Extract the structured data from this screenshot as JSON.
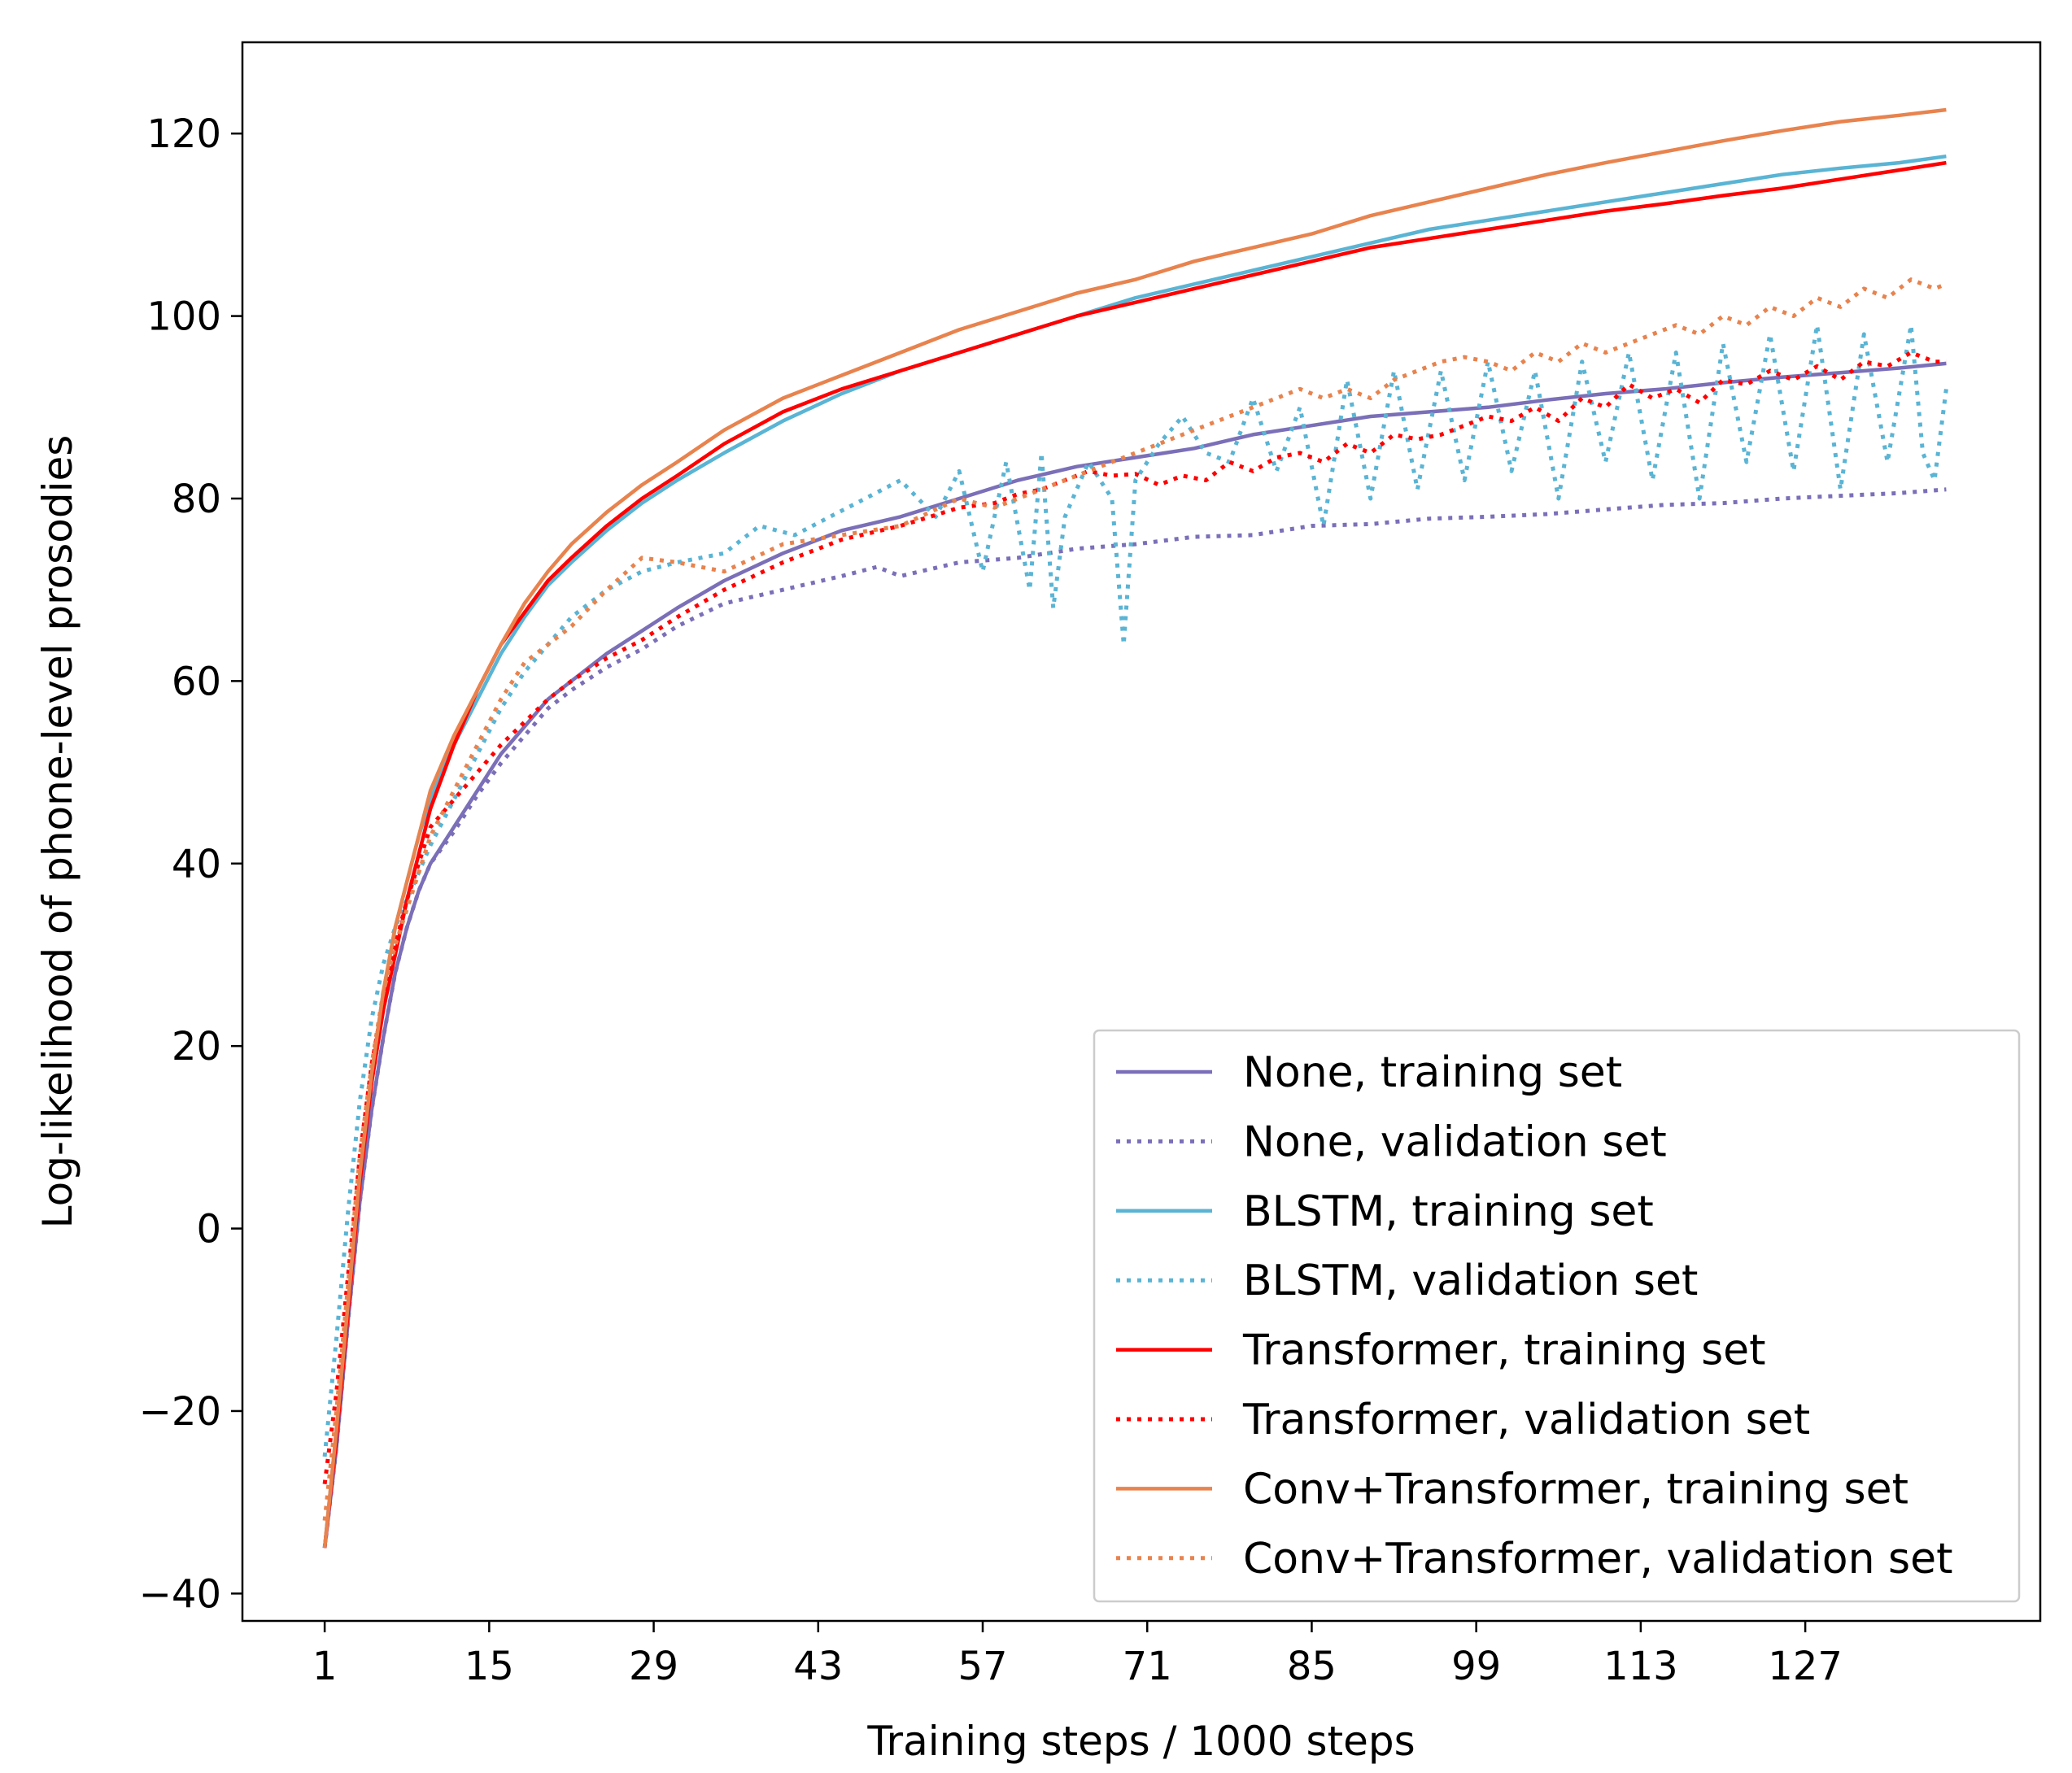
{
  "chart_data": {
    "type": "line",
    "title": "",
    "xlabel": "Training steps / 1000 steps",
    "ylabel": "Log-likelihood of phone-level prosodies",
    "xlim": [
      -6,
      147
    ],
    "ylim": [
      -43,
      130
    ],
    "xticks": [
      1,
      15,
      29,
      43,
      57,
      71,
      85,
      99,
      113,
      127
    ],
    "xtick_labels": [
      "1",
      "15",
      "29",
      "43",
      "57",
      "71",
      "85",
      "99",
      "113",
      "127"
    ],
    "yticks": [
      -40,
      -20,
      0,
      20,
      40,
      60,
      80,
      100,
      120
    ],
    "ytick_labels": [
      "−40",
      "−20",
      "0",
      "20",
      "40",
      "60",
      "80",
      "100",
      "120"
    ],
    "grid": false,
    "legend_position": "lower-right",
    "series": [
      {
        "name": "None, training set",
        "color": "#7b6fb8",
        "style": "solid",
        "x": [
          1,
          2,
          3,
          4,
          5,
          6,
          7,
          8,
          9,
          10,
          12,
          14,
          16,
          18,
          20,
          22,
          25,
          28,
          31,
          35,
          40,
          45,
          50,
          55,
          60,
          65,
          70,
          75,
          80,
          85,
          90,
          95,
          100,
          105,
          110,
          115,
          120,
          125,
          130,
          135,
          139
        ],
        "y": [
          -35,
          -24,
          -10,
          3,
          13,
          21,
          28,
          33,
          37,
          40,
          44,
          48,
          52,
          55,
          58,
          60,
          63,
          65.5,
          68,
          71,
          74,
          76.5,
          78,
          80,
          82,
          83.5,
          84.5,
          85.5,
          87,
          88,
          89,
          89.5,
          90,
          90.8,
          91.5,
          92,
          92.7,
          93.3,
          93.8,
          94.3,
          94.8
        ]
      },
      {
        "name": "None, validation set",
        "color": "#7b6fb8",
        "style": "dotted",
        "x": [
          1,
          2,
          3,
          4,
          5,
          6,
          7,
          8,
          9,
          10,
          12,
          14,
          16,
          18,
          20,
          22,
          25,
          28,
          31,
          35,
          40,
          45,
          48,
          50,
          55,
          60,
          65,
          70,
          75,
          80,
          85,
          90,
          95,
          100,
          105,
          110,
          115,
          120,
          125,
          130,
          135,
          139
        ],
        "y": [
          -35,
          -24,
          -10,
          3,
          13,
          21,
          28,
          33,
          37,
          40,
          43.5,
          47.5,
          51,
          54,
          57,
          59,
          61.5,
          63.5,
          66,
          68.5,
          70,
          71.5,
          72.5,
          71.5,
          73,
          73.5,
          74.5,
          75,
          75.8,
          76,
          77,
          77.2,
          77.8,
          78,
          78.3,
          78.8,
          79.3,
          79.5,
          80,
          80.3,
          80.6,
          81
        ]
      },
      {
        "name": "BLSTM, training set",
        "color": "#5ab4d4",
        "style": "solid",
        "x": [
          1,
          2,
          3,
          4,
          5,
          6,
          7,
          8,
          9,
          10,
          12,
          14,
          16,
          18,
          20,
          22,
          25,
          28,
          31,
          35,
          40,
          45,
          50,
          55,
          60,
          65,
          70,
          75,
          80,
          85,
          90,
          95,
          100,
          105,
          110,
          115,
          120,
          125,
          130,
          135,
          139
        ],
        "y": [
          -35,
          -22,
          -8,
          6,
          17,
          26,
          33,
          38,
          43,
          47,
          53,
          58,
          63,
          67,
          70.5,
          73,
          76.5,
          79.5,
          82,
          85,
          88.5,
          91.5,
          94,
          96,
          98,
          100,
          102,
          103.5,
          105,
          106.5,
          108,
          109.5,
          110.5,
          111.5,
          112.5,
          113.5,
          114.5,
          115.5,
          116.2,
          116.8,
          117.5
        ]
      },
      {
        "name": "BLSTM, validation set",
        "color": "#5ab4d4",
        "style": "dotted",
        "x": [
          1,
          2,
          3,
          4,
          5,
          6,
          7,
          8,
          9,
          10,
          12,
          14,
          16,
          18,
          20,
          22,
          25,
          28,
          31,
          35,
          38,
          41,
          44,
          47,
          50,
          53,
          55,
          57,
          59,
          61,
          62,
          63,
          64,
          66,
          68,
          69,
          70,
          72,
          74,
          76,
          78,
          80,
          82,
          84,
          86,
          88,
          90,
          92,
          94,
          96,
          98,
          100,
          102,
          104,
          106,
          108,
          110,
          112,
          114,
          116,
          118,
          120,
          122,
          124,
          126,
          128,
          130,
          132,
          134,
          136,
          137,
          138,
          139
        ],
        "y": [
          -25,
          -12,
          2,
          14,
          23,
          29,
          33,
          36,
          39,
          42,
          47,
          52,
          57,
          61,
          64,
          67,
          70,
          72,
          73,
          74,
          77,
          76,
          78,
          80,
          82,
          78,
          83,
          72,
          84,
          70,
          85,
          68,
          78,
          84,
          80,
          64,
          82,
          86,
          89,
          85,
          84,
          91,
          83,
          90,
          77,
          93,
          80,
          94,
          81,
          94,
          82,
          95,
          83,
          94,
          80,
          95,
          84,
          96,
          82,
          96,
          80,
          97,
          84,
          98,
          83,
          99,
          81,
          98,
          84,
          99,
          85,
          82,
          92
        ]
      },
      {
        "name": "Transformer, training set",
        "color": "#ff0000",
        "style": "solid",
        "x": [
          1,
          2,
          3,
          4,
          5,
          6,
          7,
          8,
          9,
          10,
          12,
          14,
          16,
          18,
          20,
          22,
          25,
          28,
          31,
          35,
          40,
          45,
          50,
          55,
          60,
          65,
          70,
          75,
          80,
          85,
          90,
          95,
          100,
          105,
          110,
          115,
          120,
          125,
          130,
          135,
          139
        ],
        "y": [
          -35,
          -23,
          -9,
          5,
          16,
          24,
          30,
          36,
          41,
          46,
          53,
          59,
          64,
          67.5,
          71,
          73.5,
          77,
          80,
          82.5,
          86,
          89.5,
          92,
          94,
          96,
          98,
          100,
          101.5,
          103,
          104.5,
          106,
          107.5,
          108.5,
          109.5,
          110.5,
          111.5,
          112.3,
          113.2,
          114,
          115,
          116,
          116.8
        ]
      },
      {
        "name": "Transformer, validation set",
        "color": "#ff0000",
        "style": "dotted",
        "x": [
          1,
          2,
          3,
          4,
          5,
          6,
          7,
          8,
          9,
          10,
          12,
          14,
          16,
          18,
          20,
          22,
          25,
          28,
          31,
          35,
          40,
          45,
          50,
          55,
          58,
          60,
          62,
          64,
          66,
          68,
          70,
          72,
          74,
          76,
          78,
          80,
          82,
          84,
          86,
          88,
          90,
          92,
          94,
          96,
          98,
          100,
          102,
          104,
          106,
          108,
          110,
          112,
          114,
          116,
          118,
          120,
          122,
          124,
          126,
          128,
          130,
          132,
          134,
          136,
          138,
          139
        ],
        "y": [
          -28,
          -18,
          -5,
          8,
          18,
          25,
          31,
          36,
          40,
          44,
          47,
          50,
          53,
          55.5,
          58,
          60,
          62.5,
          64.5,
          67,
          70,
          73,
          75.5,
          77,
          79,
          79.5,
          80.5,
          81,
          82,
          83,
          82.5,
          82.7,
          81.5,
          82.5,
          82,
          84,
          83,
          84.5,
          85,
          84,
          86,
          85,
          87,
          86.5,
          87,
          88,
          89,
          88.5,
          90,
          88.5,
          91,
          90,
          92.5,
          91,
          92,
          90.5,
          93,
          92.5,
          94,
          93,
          94.5,
          93,
          95,
          94.5,
          96,
          95,
          95
        ]
      },
      {
        "name": "Conv+Transformer, training set",
        "color": "#e8834e",
        "style": "solid",
        "x": [
          1,
          2,
          3,
          4,
          5,
          6,
          7,
          8,
          9,
          10,
          12,
          14,
          16,
          18,
          20,
          22,
          25,
          28,
          31,
          35,
          40,
          45,
          50,
          55,
          60,
          65,
          70,
          75,
          80,
          85,
          90,
          95,
          100,
          105,
          110,
          115,
          120,
          125,
          130,
          135,
          139
        ],
        "y": [
          -35,
          -22,
          -8,
          6,
          17,
          26,
          33,
          38,
          43,
          48,
          54,
          59,
          64,
          68.5,
          72,
          75,
          78.5,
          81.5,
          84,
          87.5,
          91,
          93.5,
          96,
          98.5,
          100.5,
          102.5,
          104,
          106,
          107.5,
          109,
          111,
          112.5,
          114,
          115.5,
          116.8,
          118,
          119.2,
          120.3,
          121.3,
          122,
          122.6
        ]
      },
      {
        "name": "Conv+Transformer, validation set",
        "color": "#e8834e",
        "style": "dotted",
        "x": [
          1,
          2,
          3,
          4,
          5,
          6,
          7,
          8,
          9,
          10,
          12,
          14,
          16,
          18,
          20,
          22,
          25,
          28,
          31,
          35,
          40,
          45,
          50,
          55,
          58,
          60,
          62,
          64,
          66,
          68,
          70,
          72,
          74,
          76,
          78,
          80,
          82,
          84,
          86,
          88,
          90,
          92,
          94,
          96,
          98,
          100,
          102,
          104,
          106,
          108,
          110,
          112,
          114,
          116,
          118,
          120,
          122,
          124,
          126,
          128,
          130,
          132,
          134,
          136,
          138,
          139
        ],
        "y": [
          -32,
          -20,
          -6,
          8,
          18,
          26,
          31,
          35,
          39,
          43,
          48,
          53,
          58,
          62,
          64,
          66,
          70,
          73.5,
          73,
          72,
          75,
          76,
          77,
          80,
          79,
          80,
          81,
          82,
          83,
          84,
          85,
          86,
          87,
          88,
          89,
          90,
          91,
          92,
          91,
          92,
          91,
          93,
          94,
          95,
          95.5,
          95,
          94,
          96,
          95,
          97,
          96,
          97,
          98,
          99,
          98,
          100,
          99,
          101,
          100,
          102,
          101,
          103,
          102,
          104,
          103,
          103.5
        ]
      }
    ]
  }
}
